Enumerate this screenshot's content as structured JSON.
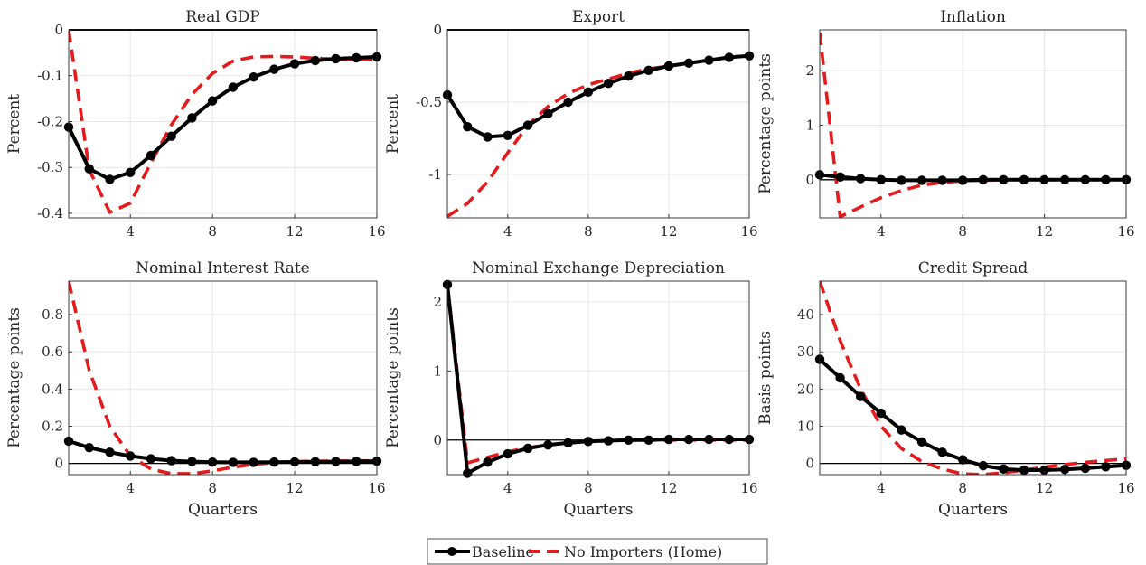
{
  "colors": {
    "baseline": "#000000",
    "no_importers": "#e41a1c",
    "grid": "#e6e6e6",
    "axis": "#262626",
    "zero_line": "#000000"
  },
  "legend": {
    "items": [
      {
        "label": "Baseline",
        "style": "solid-marker",
        "color": "#000000"
      },
      {
        "label": "No Importers (Home)",
        "style": "dashed",
        "color": "#e41a1c"
      }
    ],
    "placement": "bottom-center"
  },
  "chart_data": [
    {
      "type": "line",
      "title": "Real GDP",
      "xlabel": "",
      "ylabel": "Percent",
      "xlim": [
        1,
        16
      ],
      "ylim": [
        -0.41,
        0
      ],
      "xticks": [
        4,
        8,
        12,
        16
      ],
      "xtick_labels": [
        "4",
        "8",
        "12",
        "16"
      ],
      "yticks": [
        -0.4,
        -0.3,
        -0.2,
        -0.1,
        0
      ],
      "ytick_labels": [
        "-0.4",
        "-0.3",
        "-0.2",
        "-0.1",
        "0"
      ],
      "grid": true,
      "x": [
        1,
        2,
        3,
        4,
        5,
        6,
        7,
        8,
        9,
        10,
        11,
        12,
        13,
        14,
        15,
        16
      ],
      "series": [
        {
          "name": "Baseline",
          "values": [
            -0.212,
            -0.303,
            -0.326,
            -0.311,
            -0.274,
            -0.232,
            -0.192,
            -0.155,
            -0.125,
            -0.103,
            -0.086,
            -0.074,
            -0.067,
            -0.063,
            -0.061,
            -0.059
          ]
        },
        {
          "name": "No Importers (Home)",
          "values": [
            0.0,
            -0.305,
            -0.398,
            -0.378,
            -0.29,
            -0.207,
            -0.141,
            -0.095,
            -0.068,
            -0.059,
            -0.058,
            -0.059,
            -0.062,
            -0.064,
            -0.065,
            -0.065
          ]
        }
      ]
    },
    {
      "type": "line",
      "title": "Export",
      "xlabel": "",
      "ylabel": "Percent",
      "xlim": [
        1,
        16
      ],
      "ylim": [
        -1.3,
        0
      ],
      "xticks": [
        4,
        8,
        12,
        16
      ],
      "xtick_labels": [
        "4",
        "8",
        "12",
        "16"
      ],
      "yticks": [
        -1,
        -0.5,
        0
      ],
      "ytick_labels": [
        "-1",
        "-0.5",
        "0"
      ],
      "grid": true,
      "x": [
        1,
        2,
        3,
        4,
        5,
        6,
        7,
        8,
        9,
        10,
        11,
        12,
        13,
        14,
        15,
        16
      ],
      "series": [
        {
          "name": "Baseline",
          "values": [
            -0.45,
            -0.67,
            -0.74,
            -0.73,
            -0.66,
            -0.58,
            -0.5,
            -0.43,
            -0.37,
            -0.32,
            -0.28,
            -0.25,
            -0.23,
            -0.21,
            -0.19,
            -0.18
          ]
        },
        {
          "name": "No Importers (Home)",
          "values": [
            -1.29,
            -1.2,
            -1.05,
            -0.85,
            -0.66,
            -0.53,
            -0.44,
            -0.38,
            -0.34,
            -0.3,
            -0.27,
            -0.25,
            -0.23,
            -0.21,
            -0.19,
            -0.18
          ]
        }
      ]
    },
    {
      "type": "line",
      "title": "Inflation",
      "xlabel": "",
      "ylabel": "Percentage points",
      "xlim": [
        1,
        16
      ],
      "ylim": [
        -0.7,
        2.75
      ],
      "xticks": [
        4,
        8,
        12,
        16
      ],
      "xtick_labels": [
        "4",
        "8",
        "12",
        "16"
      ],
      "yticks": [
        0,
        1,
        2
      ],
      "ytick_labels": [
        "0",
        "1",
        "2"
      ],
      "grid": true,
      "x": [
        1,
        2,
        3,
        4,
        5,
        6,
        7,
        8,
        9,
        10,
        11,
        12,
        13,
        14,
        15,
        16
      ],
      "series": [
        {
          "name": "Baseline",
          "values": [
            0.09,
            0.05,
            0.02,
            0.0,
            -0.01,
            -0.01,
            -0.01,
            -0.01,
            0.0,
            0.0,
            0.0,
            0.0,
            0.0,
            0.0,
            0.0,
            0.0
          ]
        },
        {
          "name": "No Importers (Home)",
          "values": [
            2.7,
            -0.68,
            -0.5,
            -0.33,
            -0.2,
            -0.1,
            -0.05,
            -0.02,
            -0.01,
            0.0,
            0.0,
            0.0,
            0.0,
            0.0,
            0.0,
            0.0
          ]
        }
      ]
    },
    {
      "type": "line",
      "title": "Nominal Interest Rate",
      "xlabel": "Quarters",
      "ylabel": "Percentage points",
      "xlim": [
        1,
        16
      ],
      "ylim": [
        -0.06,
        0.98
      ],
      "xticks": [
        4,
        8,
        12,
        16
      ],
      "xtick_labels": [
        "4",
        "8",
        "12",
        "16"
      ],
      "yticks": [
        0,
        0.2,
        0.4,
        0.6,
        0.8
      ],
      "ytick_labels": [
        "0",
        "0.2",
        "0.4",
        "0.6",
        "0.8"
      ],
      "grid": true,
      "x": [
        1,
        2,
        3,
        4,
        5,
        6,
        7,
        8,
        9,
        10,
        11,
        12,
        13,
        14,
        15,
        16
      ],
      "series": [
        {
          "name": "Baseline",
          "values": [
            0.12,
            0.085,
            0.06,
            0.04,
            0.025,
            0.015,
            0.01,
            0.007,
            0.006,
            0.006,
            0.007,
            0.008,
            0.009,
            0.01,
            0.011,
            0.012
          ]
        },
        {
          "name": "No Importers (Home)",
          "values": [
            0.98,
            0.5,
            0.2,
            0.04,
            -0.03,
            -0.055,
            -0.055,
            -0.04,
            -0.02,
            -0.005,
            0.005,
            0.01,
            0.012,
            0.013,
            0.014,
            0.015
          ]
        }
      ]
    },
    {
      "type": "line",
      "title": "Nominal Exchange Depreciation",
      "xlabel": "Quarters",
      "ylabel": "Percentage points",
      "xlim": [
        1,
        16
      ],
      "ylim": [
        -0.5,
        2.3
      ],
      "xticks": [
        4,
        8,
        12,
        16
      ],
      "xtick_labels": [
        "4",
        "8",
        "12",
        "16"
      ],
      "yticks": [
        0,
        1,
        2
      ],
      "ytick_labels": [
        "0",
        "1",
        "2"
      ],
      "grid": true,
      "x": [
        1,
        2,
        3,
        4,
        5,
        6,
        7,
        8,
        9,
        10,
        11,
        12,
        13,
        14,
        15,
        16
      ],
      "series": [
        {
          "name": "Baseline",
          "values": [
            2.25,
            -0.48,
            -0.32,
            -0.2,
            -0.12,
            -0.07,
            -0.04,
            -0.02,
            -0.01,
            0.0,
            0.0,
            0.01,
            0.01,
            0.01,
            0.01,
            0.01
          ]
        },
        {
          "name": "No Importers (Home)",
          "values": [
            2.25,
            -0.33,
            -0.25,
            -0.17,
            -0.11,
            -0.07,
            -0.04,
            -0.02,
            -0.01,
            0.0,
            0.0,
            0.0,
            0.0,
            0.0,
            0.0,
            0.0
          ]
        }
      ]
    },
    {
      "type": "line",
      "title": "Credit Spread",
      "xlabel": "Quarters",
      "ylabel": "Basis points",
      "xlim": [
        1,
        16
      ],
      "ylim": [
        -3,
        49
      ],
      "xticks": [
        4,
        8,
        12,
        16
      ],
      "xtick_labels": [
        "4",
        "8",
        "12",
        "16"
      ],
      "yticks": [
        0,
        10,
        20,
        30,
        40
      ],
      "ytick_labels": [
        "0",
        "10",
        "20",
        "30",
        "40"
      ],
      "grid": true,
      "x": [
        1,
        2,
        3,
        4,
        5,
        6,
        7,
        8,
        9,
        10,
        11,
        12,
        13,
        14,
        15,
        16
      ],
      "series": [
        {
          "name": "Baseline",
          "values": [
            28,
            23,
            18,
            13.5,
            9,
            5.8,
            3,
            1,
            -0.6,
            -1.5,
            -1.8,
            -1.8,
            -1.6,
            -1.3,
            -0.9,
            -0.5
          ]
        },
        {
          "name": "No Importers (Home)",
          "values": [
            49,
            33,
            20,
            10,
            4,
            0.5,
            -1.5,
            -2.8,
            -3,
            -2.5,
            -1.8,
            -1.0,
            -0.3,
            0.3,
            0.8,
            1.2
          ]
        }
      ]
    }
  ]
}
